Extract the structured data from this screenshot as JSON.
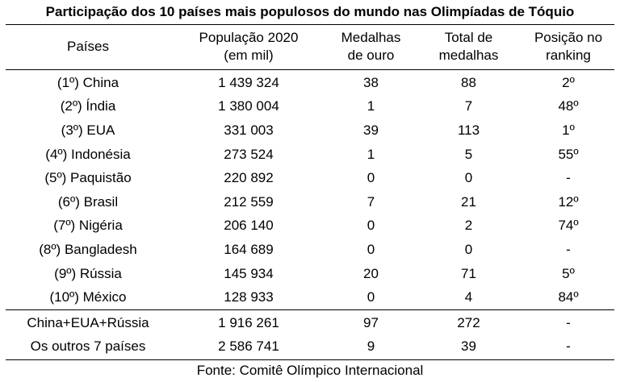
{
  "title": "Participação dos 10 países mais populosos do mundo nas Olimpíadas de Tóquio",
  "headers": {
    "country": "Países",
    "population": [
      "População 2020",
      "(em mil)"
    ],
    "gold": [
      "Medalhas",
      "de ouro"
    ],
    "total": [
      "Total de",
      "medalhas"
    ],
    "rank": [
      "Posição no",
      "ranking"
    ]
  },
  "rows": [
    {
      "country": "(1º) China",
      "population": "1 439 324",
      "gold": "38",
      "total": "88",
      "rank": "2º"
    },
    {
      "country": "(2º) Índia",
      "population": "1 380 004",
      "gold": "1",
      "total": "7",
      "rank": "48º"
    },
    {
      "country": "(3º) EUA",
      "population": "331 003",
      "gold": "39",
      "total": "113",
      "rank": "1º"
    },
    {
      "country": "(4º) Indonésia",
      "population": "273 524",
      "gold": "1",
      "total": "5",
      "rank": "55º"
    },
    {
      "country": "(5º) Paquistão",
      "population": "220 892",
      "gold": "0",
      "total": "0",
      "rank": "-"
    },
    {
      "country": "(6º) Brasil",
      "population": "212 559",
      "gold": "7",
      "total": "21",
      "rank": "12º"
    },
    {
      "country": "(7º) Nigéria",
      "population": "206 140",
      "gold": "0",
      "total": "2",
      "rank": "74º"
    },
    {
      "country": "(8º) Bangladesh",
      "population": "164 689",
      "gold": "0",
      "total": "0",
      "rank": "-"
    },
    {
      "country": "(9º) Rússia",
      "population": "145 934",
      "gold": "20",
      "total": "71",
      "rank": "5º"
    },
    {
      "country": "(10º) México",
      "population": "128 933",
      "gold": "0",
      "total": "4",
      "rank": "84º"
    }
  ],
  "totals": [
    {
      "country": "China+EUA+Rússia",
      "population": "1 916 261",
      "gold": "97",
      "total": "272",
      "rank": "-"
    },
    {
      "country": "Os outros 7 países",
      "population": "2 586 741",
      "gold": "9",
      "total": "39",
      "rank": "-"
    }
  ],
  "source": "Fonte: Comitê Olímpico Internacional"
}
